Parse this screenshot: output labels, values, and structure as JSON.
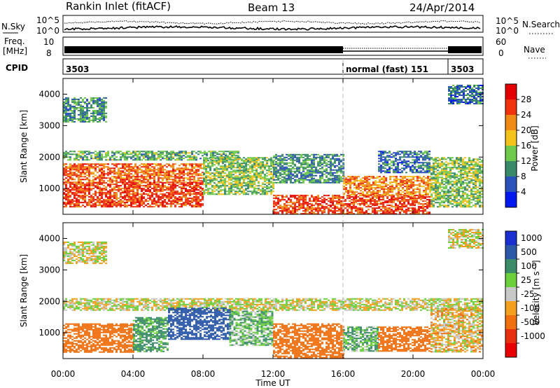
{
  "header": {
    "station": "Rankin Inlet (fitACF)",
    "beam": "Beam 13",
    "date": "24/Apr/2014"
  },
  "strips": {
    "nsky_label": "N.Sky",
    "nsky_ticks": [
      "10^5",
      "10^0"
    ],
    "nsearch_label": "N.Search",
    "nsearch_ticks": [
      "10^5",
      "10^0"
    ],
    "freq_label_1": "Freq.",
    "freq_label_2": "[MHz]",
    "freq_ticks": [
      "10",
      "8"
    ],
    "nave_label": "Nave",
    "nave_ticks": [
      "60",
      "0"
    ],
    "cpid_label": "CPID",
    "cpid_segments": [
      {
        "label": "3503",
        "start": 0,
        "end": 16
      },
      {
        "label": "normal (fast) 151",
        "start": 16,
        "end": 22
      },
      {
        "label": "3503",
        "start": 22,
        "end": 24
      }
    ]
  },
  "axes": {
    "ylabel": "Slant Range [km]",
    "xlabel": "Time UT",
    "yticks": [
      "1000",
      "2000",
      "3000",
      "4000"
    ],
    "xticks": [
      "00:00",
      "04:00",
      "08:00",
      "12:00",
      "16:00",
      "20:00",
      "00:00"
    ],
    "xlim": [
      0,
      24
    ],
    "ylim": [
      180,
      4500
    ]
  },
  "colorbars": {
    "power": {
      "label": "Power [dB]",
      "ticks": [
        "4",
        "8",
        "12",
        "16",
        "20",
        "24",
        "28"
      ],
      "colors": [
        "#0018f0",
        "#2b52b8",
        "#3a8a6a",
        "#6fc94a",
        "#f4c21a",
        "#f08a16",
        "#f0320f",
        "#e40000"
      ]
    },
    "velocity": {
      "label": "Velocity [m s⁻¹]",
      "ticks": [
        "1000",
        "500",
        "100",
        "25",
        "-25",
        "-100",
        "-500",
        "-1000"
      ],
      "colors": [
        "#1a2fd0",
        "#2b58a8",
        "#3c8c6a",
        "#6ad03c",
        "#c8c8c8",
        "#f4a020",
        "#f07010",
        "#e83010",
        "#e80000"
      ]
    }
  },
  "chart_data": [
    {
      "type": "heatmap",
      "title": "Power",
      "xlabel": "Time UT",
      "ylabel": "Slant Range [km]",
      "xlim": [
        0,
        24
      ],
      "ylim": [
        180,
        4500
      ],
      "units": "dB",
      "regions": [
        {
          "t": [
            0.0,
            2.5
          ],
          "r": [
            3100,
            3900
          ],
          "value": 10
        },
        {
          "t": [
            0.0,
            10.0
          ],
          "r": [
            1900,
            2200
          ],
          "value": 12
        },
        {
          "t": [
            0.0,
            8.0
          ],
          "r": [
            1200,
            1800
          ],
          "value": 24
        },
        {
          "t": [
            0.0,
            8.0
          ],
          "r": [
            400,
            1200
          ],
          "value": 26
        },
        {
          "t": [
            8.0,
            12.0
          ],
          "r": [
            800,
            2000
          ],
          "value": 14
        },
        {
          "t": [
            12.0,
            16.0
          ],
          "r": [
            1200,
            2100
          ],
          "value": 10
        },
        {
          "t": [
            12.0,
            21.0
          ],
          "r": [
            200,
            800
          ],
          "value": 26
        },
        {
          "t": [
            16.0,
            21.0
          ],
          "r": [
            800,
            1400
          ],
          "value": 22
        },
        {
          "t": [
            18.0,
            21.0
          ],
          "r": [
            1500,
            2200
          ],
          "value": 8
        },
        {
          "t": [
            21.0,
            24.0
          ],
          "r": [
            400,
            2000
          ],
          "value": 14
        },
        {
          "t": [
            22.0,
            24.0
          ],
          "r": [
            3700,
            4300
          ],
          "value": 8
        }
      ]
    },
    {
      "type": "heatmap",
      "title": "Velocity",
      "xlabel": "Time UT",
      "ylabel": "Slant Range [km]",
      "xlim": [
        0,
        24
      ],
      "ylim": [
        180,
        4500
      ],
      "units": "m/s",
      "regions": [
        {
          "t": [
            0.0,
            2.5
          ],
          "r": [
            3200,
            3900
          ],
          "value": 0
        },
        {
          "t": [
            0.0,
            24.0
          ],
          "r": [
            1700,
            2100
          ],
          "value": 0
        },
        {
          "t": [
            0.0,
            4.0
          ],
          "r": [
            400,
            1300
          ],
          "value": -300
        },
        {
          "t": [
            4.0,
            6.0
          ],
          "r": [
            400,
            1500
          ],
          "value": 150
        },
        {
          "t": [
            6.0,
            9.5
          ],
          "r": [
            800,
            1800
          ],
          "value": 700
        },
        {
          "t": [
            9.5,
            12.0
          ],
          "r": [
            600,
            1700
          ],
          "value": 80
        },
        {
          "t": [
            12.0,
            16.0
          ],
          "r": [
            200,
            1300
          ],
          "value": -300
        },
        {
          "t": [
            16.0,
            18.0
          ],
          "r": [
            400,
            1200
          ],
          "value": 90
        },
        {
          "t": [
            18.0,
            21.0
          ],
          "r": [
            400,
            1200
          ],
          "value": -300
        },
        {
          "t": [
            21.0,
            24.0
          ],
          "r": [
            400,
            1800
          ],
          "value": -40
        },
        {
          "t": [
            22.0,
            24.0
          ],
          "r": [
            3700,
            4300
          ],
          "value": 0
        }
      ]
    }
  ]
}
